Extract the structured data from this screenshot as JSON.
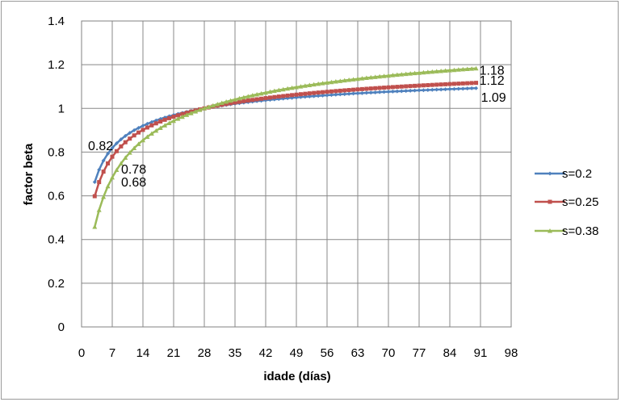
{
  "chart_data": {
    "type": "line",
    "xlabel": "idade (días)",
    "ylabel": "factor beta",
    "xlim": [
      0,
      98
    ],
    "ylim": [
      0,
      1.4
    ],
    "xticks": [
      0,
      7,
      14,
      21,
      28,
      35,
      42,
      49,
      56,
      63,
      70,
      77,
      84,
      91,
      98
    ],
    "yticks": [
      0,
      0.2,
      0.4,
      0.6,
      0.8,
      1,
      1.2,
      1.4
    ],
    "ytick_labels": [
      "0",
      "0.2",
      "0.4",
      "0.6",
      "0.8",
      "1",
      "1.2",
      "1.4"
    ],
    "grid": true,
    "legend_position": "right",
    "x_range": [
      3,
      90
    ],
    "series": [
      {
        "name": "s=0.2",
        "s": 0.2,
        "color": "#4f81bd",
        "marker": "diamond"
      },
      {
        "name": "s=0.25",
        "s": 0.25,
        "color": "#c0504d",
        "marker": "square"
      },
      {
        "name": "s=0.38",
        "s": 0.38,
        "color": "#9bbb59",
        "marker": "triangle"
      }
    ],
    "annotations": [
      {
        "text": "0.82",
        "x": 7,
        "y": 0.82
      },
      {
        "text": "0.78",
        "x": 7,
        "y": 0.78
      },
      {
        "text": "0.68",
        "x": 7,
        "y": 0.68
      },
      {
        "text": "1.18",
        "x": 90,
        "y": 1.18
      },
      {
        "text": "1.12",
        "x": 90,
        "y": 1.12
      },
      {
        "text": "1.09",
        "x": 90,
        "y": 1.09
      }
    ]
  }
}
